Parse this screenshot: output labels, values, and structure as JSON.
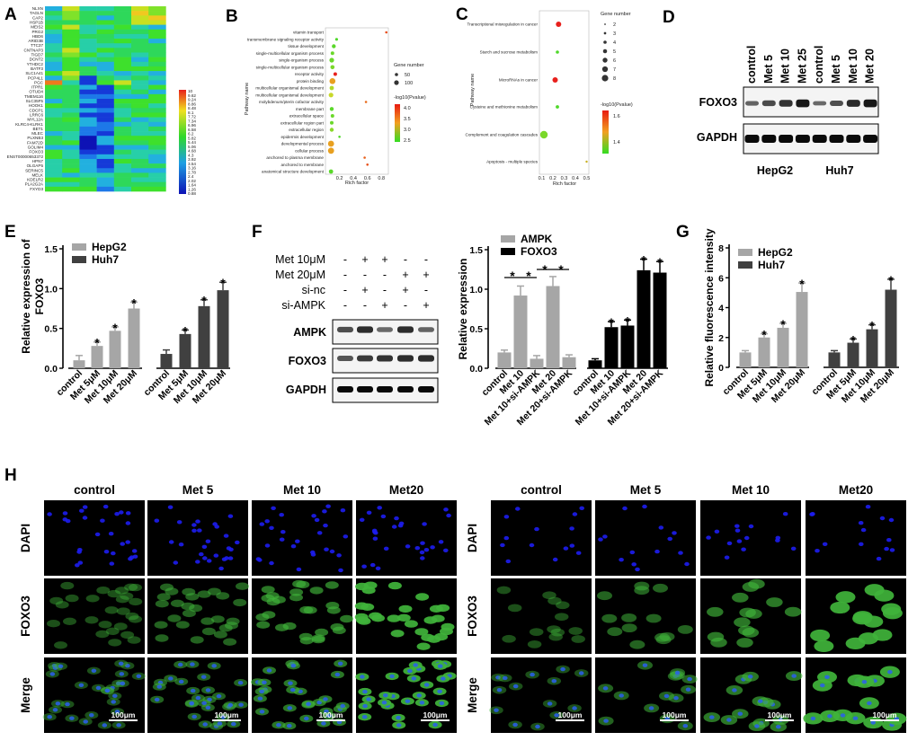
{
  "panels": {
    "a": "A",
    "b": "B",
    "c": "C",
    "d": "D",
    "e": "E",
    "f": "F",
    "g": "G",
    "h": "H"
  },
  "heatmap": {
    "genes": [
      "NLXN",
      "TAGLN",
      "CAP2",
      "HSP1B",
      "MEIS2",
      "PRG2",
      "HBD6",
      "ARID3B",
      "TTC37",
      "CNTNAP3",
      "TIGD7",
      "DCNT2",
      "YTHDC2",
      "BATF3",
      "SLC1A41",
      "PCP4L1",
      "PGC",
      "ITPR1",
      "OTUD4",
      "TMEM116",
      "SLC35F5",
      "HOOK1",
      "CDCP1",
      "LRRC6",
      "MYL12A",
      "KLRC4-KLRK1",
      "BET1",
      "MLEC",
      "PLXNB3",
      "FAM72D",
      "GOLIM4",
      "FOXO3",
      "ENST00000653372",
      "HPN7",
      "OLGAP5",
      "SERINC5",
      "MELK",
      "KDELR2",
      "PLA2G2A",
      "FXYD3"
    ],
    "scale_labels": [
      "10",
      "9.62",
      "9.24",
      "8.86",
      "8.48",
      "8.1",
      "7.72",
      "7.34",
      "6.96",
      "6.58",
      "6.2",
      "5.82",
      "5.44",
      "5.06",
      "4.68",
      "4.3",
      "3.92",
      "3.54",
      "3.16",
      "2.78",
      "2.4",
      "2.02",
      "1.64",
      "1.26",
      "0.88"
    ]
  },
  "go_plot": {
    "y_axis_title": "Pathway name",
    "x_axis_title": "Rich factor",
    "x_ticks": [
      "0.2",
      "0.4",
      "0.6",
      "0.8"
    ],
    "terms": [
      "vitamin transport",
      "transmembrane signaling receptor activity",
      "tissue development",
      "single-multicellular organism process",
      "single-organism process",
      "single-multicellular organism process",
      "receptor activity",
      "protein binding",
      "multicellular organismal development",
      "multicellular organismal development",
      "molybdenum/pterin cofactor activity",
      "membrane part",
      "extracellular space",
      "extracellular region part",
      "extracellular region",
      "epidermis development",
      "developmental process",
      "cellular process",
      "anchored to plasma membrane",
      "anchored to membrane",
      "anatomical structure development"
    ],
    "legend_size_title": "Gene number",
    "legend_size_labels": [
      "50",
      "100"
    ],
    "legend_color_title": "-log10(Pvalue)",
    "legend_color_labels": [
      "4.0",
      "3.5",
      "3.0",
      "2.5"
    ]
  },
  "kegg_plot": {
    "y_axis_title": "Pathway name",
    "x_axis_title": "Rich factor",
    "x_ticks": [
      "0.1",
      "0.2",
      "0.3",
      "0.4",
      "0.5"
    ],
    "terms": [
      "Transcriptional misregulation in cancer",
      "Starch and sucrose metabolism",
      "MicroRNAs in cancer",
      "Cysteine and methionine metabolism",
      "Complement and coagulation cascades",
      "Apoptosis - multiple species"
    ],
    "legend_size_title": "Gene number",
    "legend_size_labels": [
      "2",
      "3",
      "4",
      "5",
      "6",
      "7",
      "8"
    ],
    "legend_color_title": "-log10(Pvalue)",
    "legend_color_labels": [
      "1.6",
      "1.4"
    ]
  },
  "blot_d": {
    "lanes": [
      "control",
      "Met 5",
      "Met 10",
      "Met 25",
      "control",
      "Met 5",
      "Met 10",
      "Met 20"
    ],
    "bands": [
      "FOXO3",
      "GAPDH"
    ],
    "groups": [
      "HepG2",
      "Huh7"
    ]
  },
  "chart_e": {
    "y_axis_title": "Relative expression of FOXO3",
    "y_ticks": [
      "0.0",
      "0.5",
      "1.0",
      "1.5"
    ],
    "ymax": 1.5,
    "legend": [
      "HepG2",
      "Huh7"
    ],
    "categories": [
      "control",
      "Met 5μM",
      "Met 10μM",
      "Met 20μM",
      "control",
      "Met 5μM",
      "Met 10μM",
      "Met 20μM"
    ],
    "values": [
      0.1,
      0.28,
      0.47,
      0.75,
      0.18,
      0.43,
      0.78,
      0.98
    ],
    "errors": [
      0.06,
      0.05,
      0.05,
      0.08,
      0.05,
      0.05,
      0.08,
      0.1
    ],
    "series_index": [
      0,
      0,
      0,
      0,
      1,
      1,
      1,
      1
    ],
    "stars": [
      false,
      true,
      true,
      true,
      false,
      true,
      true,
      true
    ],
    "star_label": "*"
  },
  "table_f": {
    "rows": [
      {
        "label": "Met 10μM",
        "signs": [
          "-",
          "+",
          "+",
          "-",
          "-"
        ]
      },
      {
        "label": "Met 20μM",
        "signs": [
          "-",
          "-",
          "-",
          "+",
          "+"
        ]
      },
      {
        "label": "si-nc",
        "signs": [
          "-",
          "+",
          "-",
          "+",
          "-"
        ]
      },
      {
        "label": "si-AMPK",
        "signs": [
          "-",
          "-",
          "+",
          "-",
          "+"
        ]
      }
    ],
    "bands": [
      "AMPK",
      "FOXO3",
      "GAPDH"
    ]
  },
  "chart_f": {
    "y_axis_title": "Relative expression",
    "y_ticks": [
      "0.0",
      "0.5",
      "1.0",
      "1.5"
    ],
    "ymax": 1.5,
    "legend": [
      "AMPK",
      "FOXO3"
    ],
    "categories": [
      "control",
      "Met 10",
      "Met 10+si-AMPK",
      "Met 20",
      "Met 20+si-AMPK",
      "control",
      "Met 10",
      "Met 10+si-AMPK",
      "Met 20",
      "Met 20+si-AMPK"
    ],
    "values": [
      0.2,
      0.92,
      0.12,
      1.04,
      0.14,
      0.1,
      0.52,
      0.54,
      1.24,
      1.21
    ],
    "errors": [
      0.03,
      0.12,
      0.04,
      0.12,
      0.03,
      0.02,
      0.07,
      0.07,
      0.14,
      0.14
    ],
    "series_index": [
      0,
      0,
      0,
      0,
      0,
      1,
      1,
      1,
      1,
      1
    ],
    "stars": [
      false,
      false,
      false,
      false,
      false,
      false,
      true,
      true,
      true,
      true
    ],
    "star_label": "*"
  },
  "chart_g": {
    "y_axis_title": "Relative fluorescence intensity",
    "y_ticks": [
      "0",
      "2",
      "4",
      "6",
      "8"
    ],
    "ymax": 8,
    "legend": [
      "HepG2",
      "Huh7"
    ],
    "categories": [
      "control",
      "Met 5μM",
      "Met 10μM",
      "Met 20μM",
      "control",
      "Met 5μM",
      "Met 10μM",
      "Met 20μM"
    ],
    "values": [
      1.0,
      2.0,
      2.65,
      5.05,
      1.0,
      1.65,
      2.55,
      5.2
    ],
    "errors": [
      0.12,
      0.25,
      0.3,
      0.6,
      0.12,
      0.25,
      0.3,
      0.7
    ],
    "series_index": [
      0,
      0,
      0,
      0,
      1,
      1,
      1,
      1
    ],
    "stars": [
      false,
      true,
      true,
      true,
      false,
      true,
      true,
      true
    ],
    "star_label": "*"
  },
  "microscopy": {
    "left_headers": [
      "control",
      "Met  5",
      "Met 10",
      "Met20"
    ],
    "right_headers": [
      "control",
      "Met  5",
      "Met 10",
      "Met20"
    ],
    "row_labels": [
      "DAPI",
      "FOXO3",
      "Merge"
    ],
    "scale_bar_text": "100μm"
  },
  "colors": {
    "hepg2_bar": "#a6a6a6",
    "huh7_bar": "#404040",
    "ampk_bar": "#a6a6a6",
    "foxo3_bar": "#000000"
  }
}
